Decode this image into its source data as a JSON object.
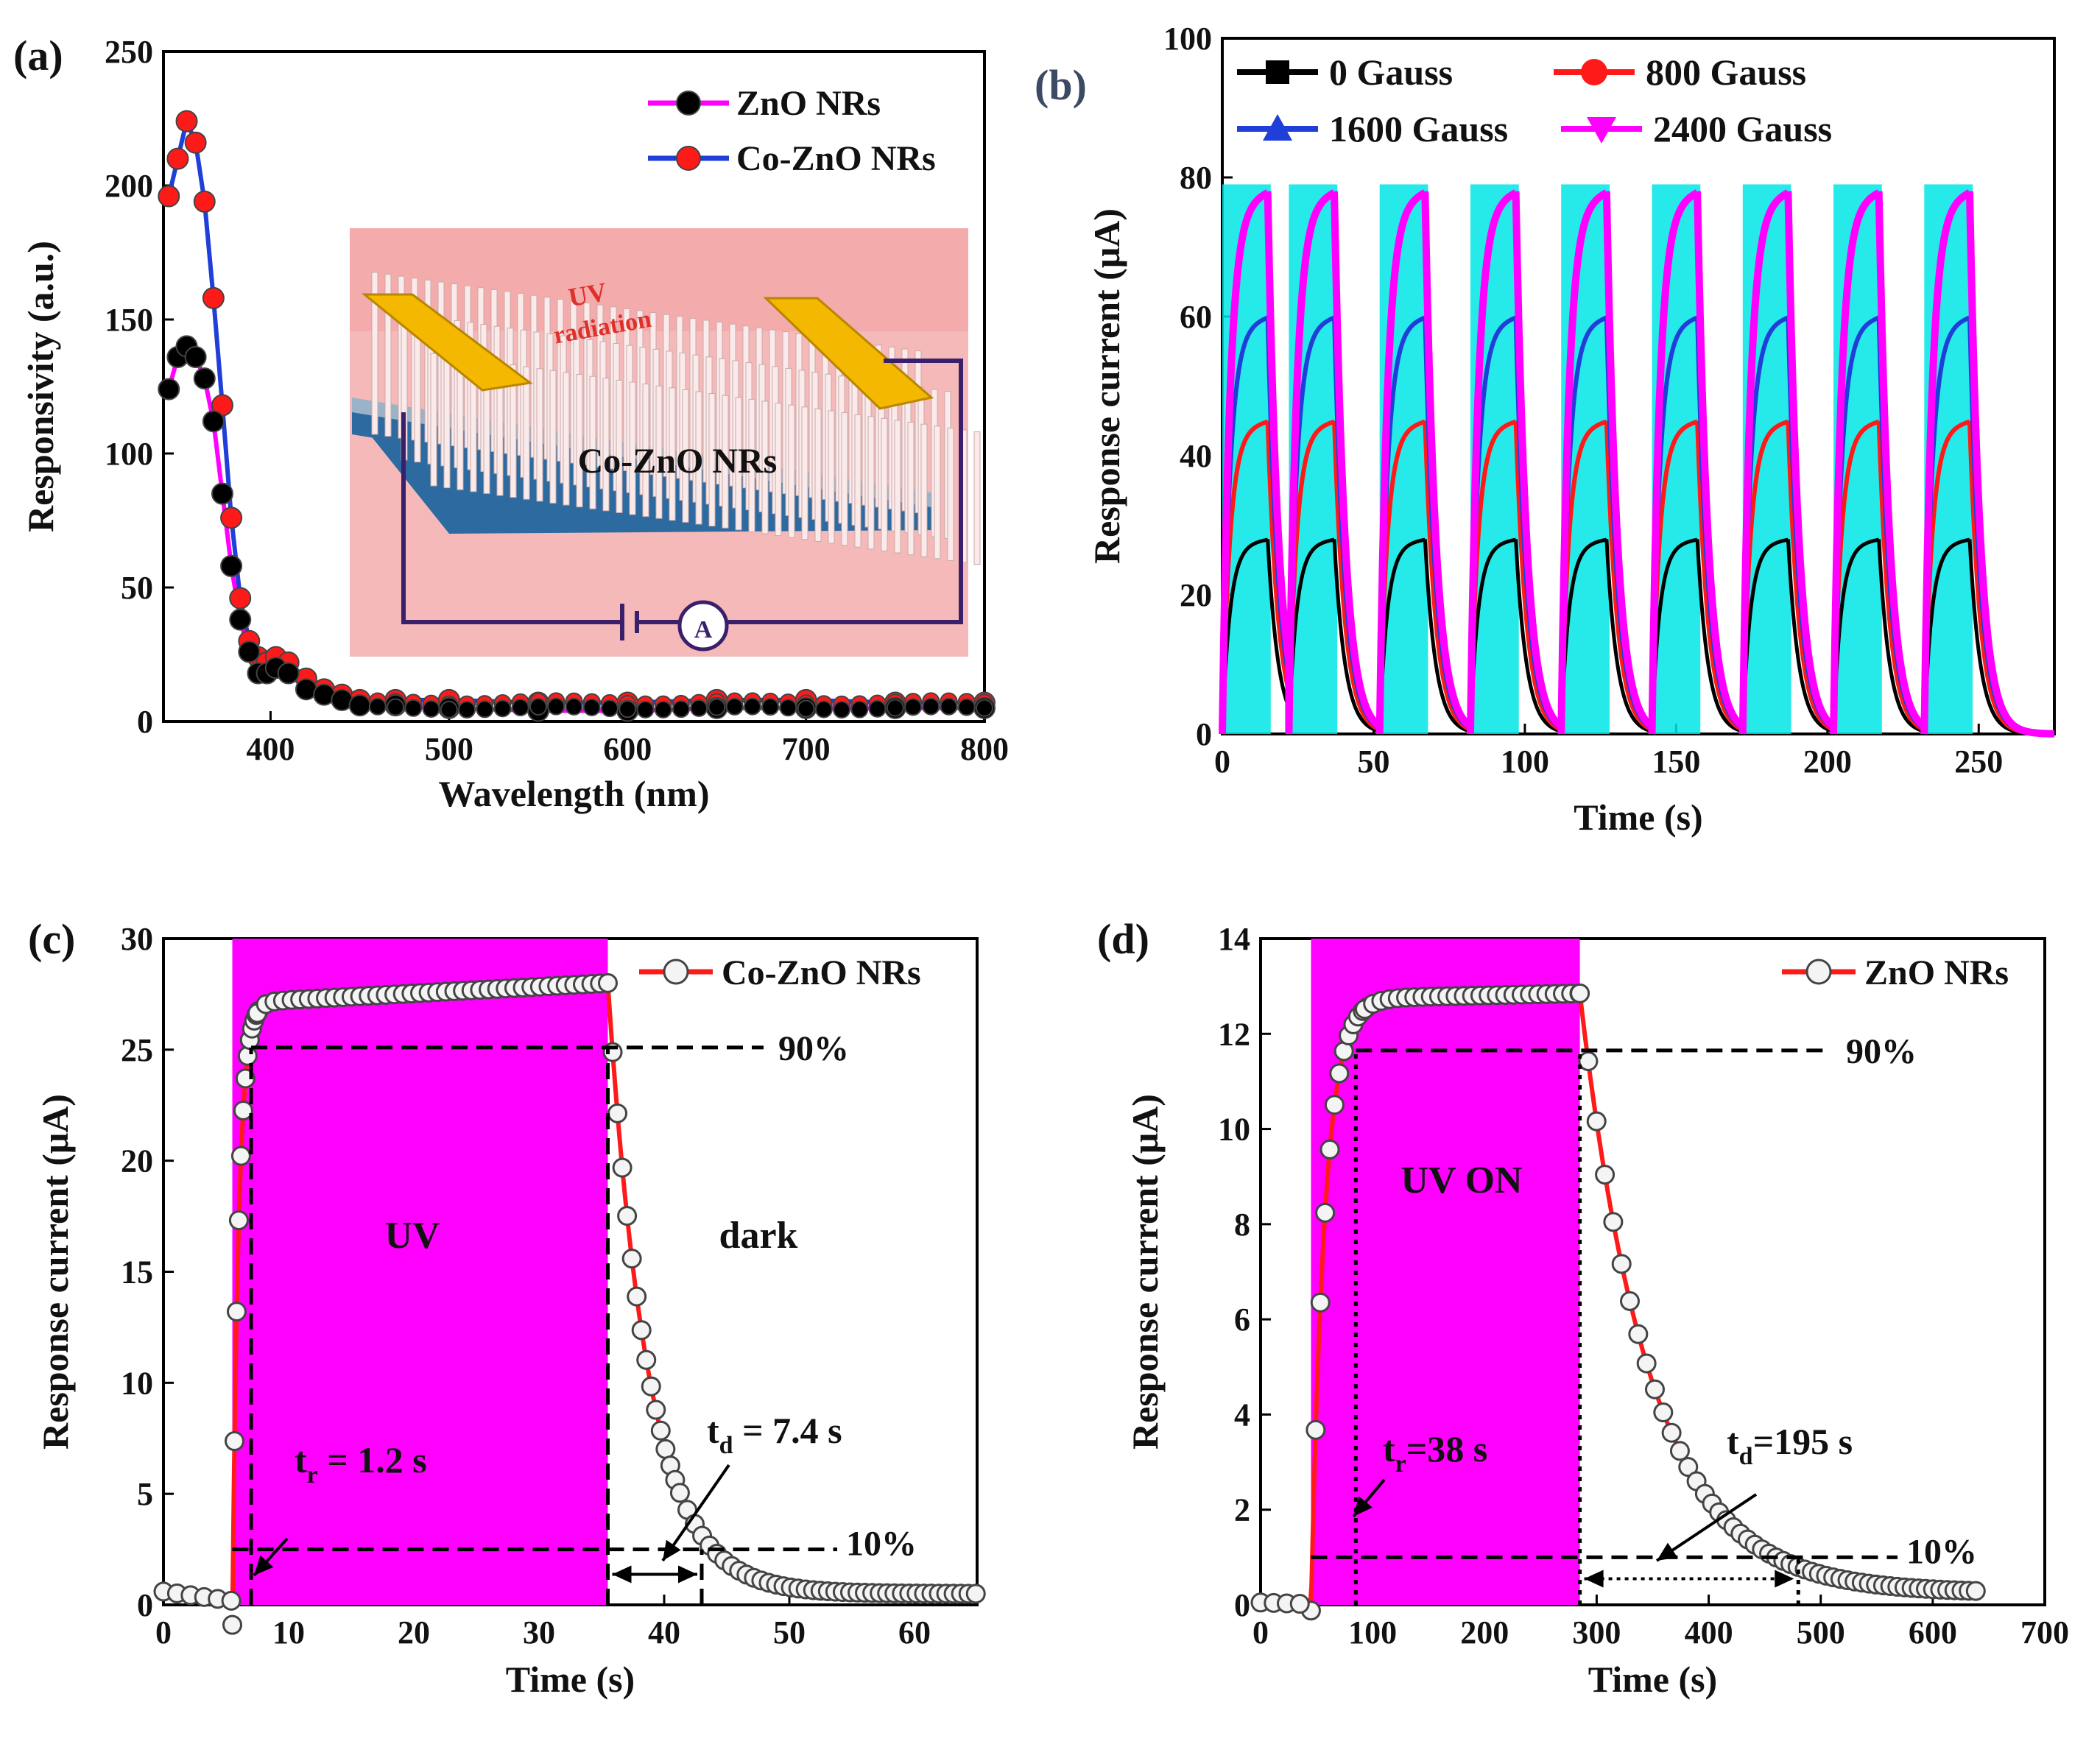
{
  "colors": {
    "zno": "#000000",
    "co_zno": "#ff1a1a",
    "zno_line": "#ff00ff",
    "co_zno_line": "#1f3fd8",
    "g0": "#000000",
    "g800": "#ff1a1a",
    "g1600": "#1f3fd8",
    "g2400": "#ff00ff",
    "fill_cyan": "#00e5e5",
    "uv_band": "#ff00ff",
    "inset_bg": "#f6b9b9",
    "electrode": "#f5b800",
    "substrate": "#2d6a9f",
    "circuit": "#3a1f6b"
  },
  "chart_data": [
    {
      "panel": "(a)",
      "type": "scatter",
      "xlabel": "Wavelength (nm)",
      "ylabel": "Responsivity (a.u.)",
      "xlim": [
        340,
        800
      ],
      "ylim": [
        0,
        250
      ],
      "xticks": [
        400,
        500,
        600,
        700,
        800
      ],
      "yticks": [
        0,
        50,
        100,
        150,
        200,
        250
      ],
      "legend_position": "top-right",
      "series": [
        {
          "name": "ZnO NRs",
          "x": [
            343,
            348,
            353,
            358,
            363,
            368,
            373,
            378,
            383,
            388,
            393,
            398,
            403,
            410,
            420,
            430,
            440,
            450,
            470,
            500,
            550,
            600,
            650,
            700,
            750,
            800
          ],
          "values": [
            124,
            136,
            140,
            136,
            128,
            112,
            85,
            58,
            38,
            26,
            18,
            18,
            20,
            18,
            12,
            10,
            8,
            6,
            6,
            5,
            4,
            4,
            5,
            5,
            5,
            5
          ]
        },
        {
          "name": "Co-ZnO NRs",
          "x": [
            343,
            348,
            353,
            358,
            363,
            368,
            373,
            378,
            383,
            388,
            393,
            398,
            403,
            410,
            420,
            430,
            440,
            450,
            470,
            500,
            550,
            600,
            650,
            700,
            750,
            800
          ],
          "values": [
            196,
            210,
            224,
            216,
            194,
            158,
            118,
            76,
            46,
            30,
            24,
            22,
            24,
            22,
            16,
            12,
            10,
            8,
            8,
            8,
            7,
            7,
            8,
            8,
            7,
            7
          ]
        }
      ],
      "inset": {
        "uv_label": "UV",
        "uv_label2": "radiation",
        "material_label": "Co-ZnO NRs",
        "ammeter_label": "A"
      }
    },
    {
      "panel": "(b)",
      "type": "line",
      "xlabel": "Time (s)",
      "ylabel": "Response current (μA)",
      "xlim": [
        0,
        275
      ],
      "ylim": [
        0,
        100
      ],
      "xticks": [
        0,
        50,
        100,
        150,
        200,
        250
      ],
      "yticks": [
        0,
        20,
        40,
        60,
        80,
        100
      ],
      "legend_position": "top",
      "cycle_on_starts": [
        0,
        22,
        52,
        82,
        112,
        142,
        172,
        202,
        232
      ],
      "on_duration_s": 15,
      "series": [
        {
          "name": "0 Gauss",
          "plateau": 28
        },
        {
          "name": "800 Gauss",
          "plateau": 45
        },
        {
          "name": "1600 Gauss",
          "plateau": 60
        },
        {
          "name": "2400 Gauss",
          "plateau": 78
        }
      ]
    },
    {
      "panel": "(c)",
      "type": "line",
      "xlabel": "Time (s)",
      "ylabel": "Response current (μA)",
      "xlim": [
        0,
        65
      ],
      "ylim": [
        0,
        30
      ],
      "xticks": [
        0,
        10,
        20,
        30,
        40,
        50,
        60
      ],
      "yticks": [
        0,
        5,
        10,
        15,
        20,
        25,
        30
      ],
      "legend_position": "top-right",
      "series_name": "Co-ZnO NRs",
      "uv_on": 5.5,
      "uv_off": 35.5,
      "plateau": 28,
      "baseline": 0.6,
      "tail_end": 0.5,
      "level90": 25.1,
      "level10": 2.5,
      "rise_marker_x": 7,
      "decay_marker_x": 43,
      "labels": {
        "uv": "UV",
        "dark": "dark",
        "p90": "90%",
        "p10": "10%",
        "tr_sym": "t",
        "tr_sub": "r",
        "tr_val": " = 1.2 s",
        "td_sym": "t",
        "td_sub": "d",
        "td_val": " = 7.4 s"
      }
    },
    {
      "panel": "(d)",
      "type": "line",
      "xlabel": "Time (s)",
      "ylabel": "Response current (μA)",
      "xlim": [
        0,
        700
      ],
      "ylim": [
        0,
        14
      ],
      "xticks": [
        0,
        100,
        200,
        300,
        400,
        500,
        600,
        700
      ],
      "yticks": [
        0,
        2,
        4,
        6,
        8,
        10,
        12,
        14
      ],
      "legend_position": "top-right",
      "series_name": "ZnO NRs",
      "uv_on": 45,
      "uv_off": 285,
      "plateau": 12.85,
      "baseline": 0.05,
      "tail_end": 0.25,
      "level90": 11.65,
      "level10": 1.0,
      "rise_marker_x": 85,
      "decay_marker_x": 480,
      "labels": {
        "uv": "UV ON",
        "p90": "90%",
        "p10": "10%",
        "tr_sym": "t",
        "tr_sub": "r",
        "tr_val": "=38 s",
        "td_sym": "t",
        "td_sub": "d",
        "td_val": "=195 s"
      }
    }
  ]
}
